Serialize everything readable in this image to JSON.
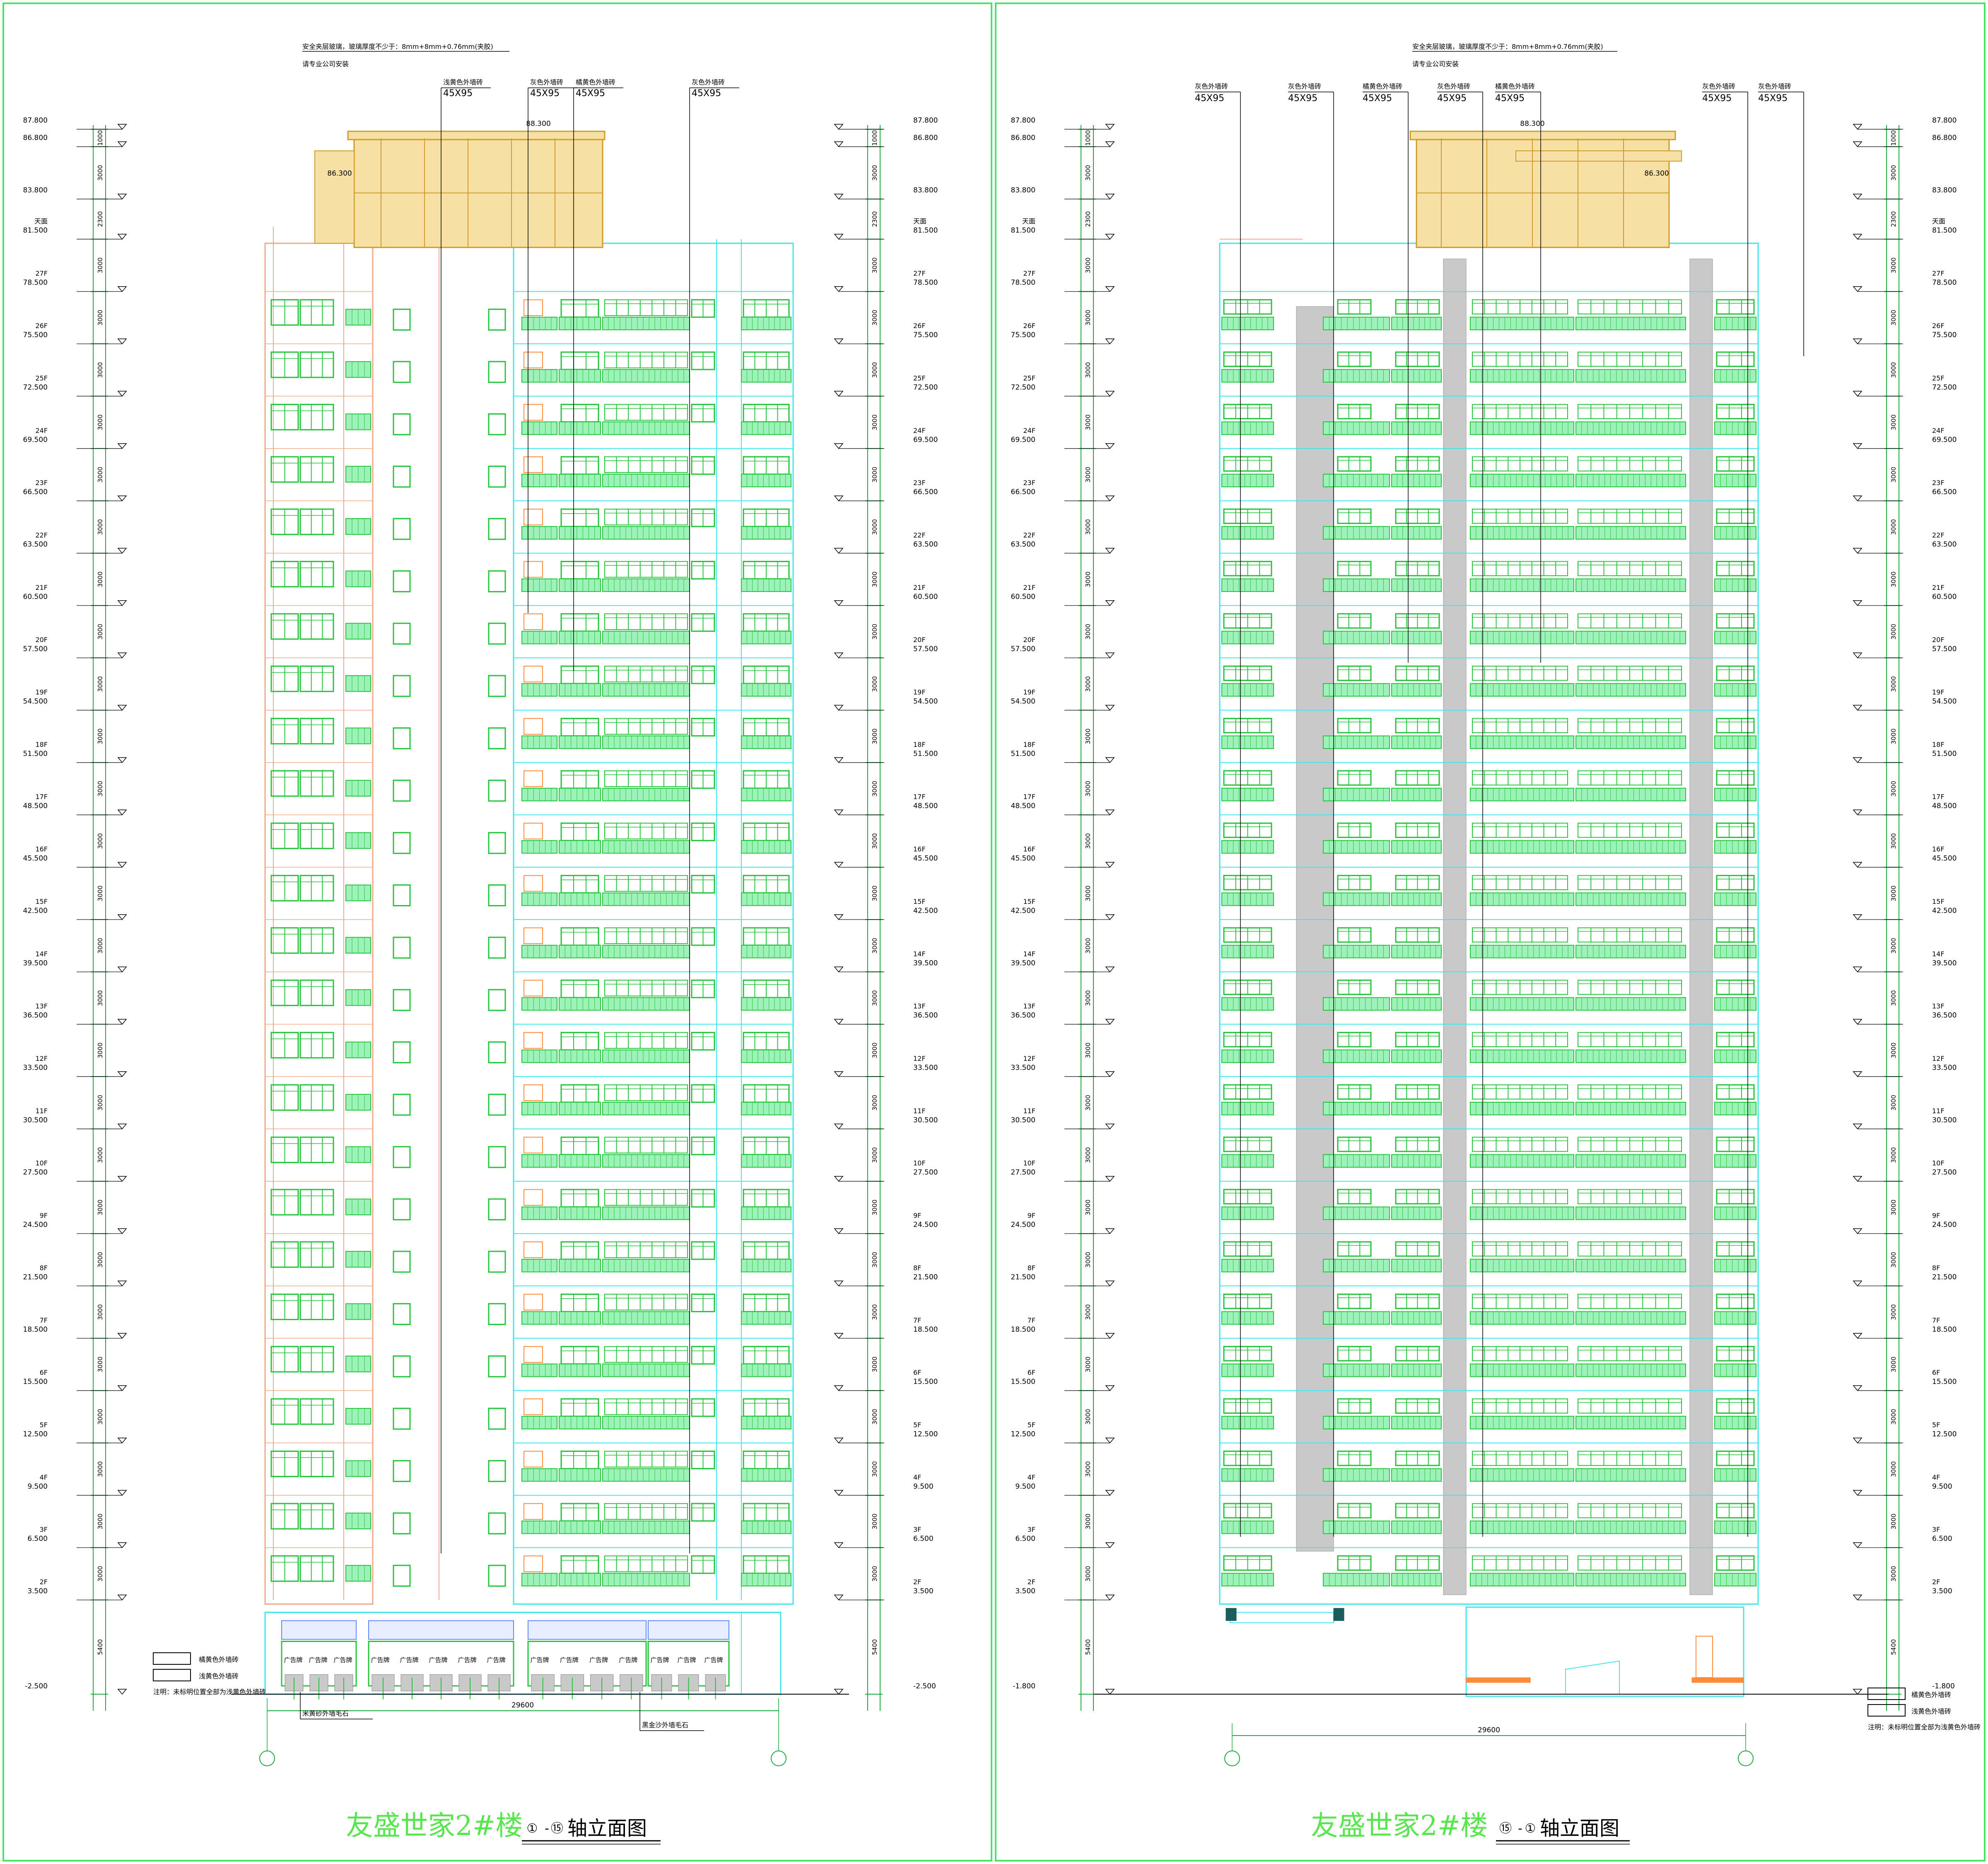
{
  "drawings": [
    {
      "id": "front",
      "title_name": "友盛世家2#楼",
      "axis_from": "①",
      "axis_to": "⑮",
      "title_suffix": "轴立面图",
      "glass_note_line1": "安全夹层玻璃，玻璃厚度不少于：8mm+8mm+0.76mm(夹胶)",
      "glass_note_line2": "请专业公司安装",
      "callouts": [
        {
          "label": "浅黄色外墙砖",
          "size": "45X95"
        },
        {
          "label": "灰色外墙砖",
          "size": "45X95"
        },
        {
          "label": "橘黄色外墙砖",
          "size": "45X95"
        },
        {
          "label": "灰色外墙砖",
          "size": "45X95"
        }
      ],
      "roof_levels": [
        "88.300",
        "86.300"
      ],
      "sign_label": "广告牌",
      "bottom_labels": [
        "米黄砂外墙毛石",
        "黑金沙外墙毛石"
      ],
      "total_width": "29600",
      "legend": [
        {
          "label": "橘黄色外墙砖"
        },
        {
          "label": "浅黄色外墙砖"
        }
      ],
      "legend_note": "注明：未标明位置全部为浅黄色外墙砖",
      "ground_level": "-2.500"
    },
    {
      "id": "back",
      "title_name": "友盛世家2#楼",
      "axis_from": "⑮",
      "axis_to": "①",
      "title_suffix": "轴立面图",
      "glass_note_line1": "安全夹层玻璃，玻璃厚度不少于：8mm+8mm+0.76mm(夹胶)",
      "glass_note_line2": "请专业公司安装",
      "callouts": [
        {
          "label": "灰色外墙砖",
          "size": "45X95"
        },
        {
          "label": "灰色外墙砖",
          "size": "45X95"
        },
        {
          "label": "橘黄色外墙砖",
          "size": "45X95"
        },
        {
          "label": "灰色外墙砖",
          "size": "45X95"
        },
        {
          "label": "橘黄色外墙砖",
          "size": "45X95"
        },
        {
          "label": "灰色外墙砖",
          "size": "45X95"
        },
        {
          "label": "灰色外墙砖",
          "size": "45X95"
        }
      ],
      "roof_levels": [
        "88.300",
        "86.300"
      ],
      "total_width": "29600",
      "legend": [
        {
          "label": "橘黄色外墙砖"
        },
        {
          "label": "浅黄色外墙砖"
        }
      ],
      "legend_note": "注明：未标明位置全部为浅黄色外墙砖",
      "ground_level": "-1.800"
    }
  ],
  "elevation_levels": [
    {
      "floor": "",
      "value": "87.800",
      "dim": "1000"
    },
    {
      "floor": "",
      "value": "86.800",
      "dim": "3000"
    },
    {
      "floor": "",
      "value": "83.800",
      "dim": "2300"
    },
    {
      "floor": "天面",
      "value": "81.500",
      "dim": "3000"
    },
    {
      "floor": "27F",
      "value": "78.500",
      "dim": "3000"
    },
    {
      "floor": "26F",
      "value": "75.500",
      "dim": "3000"
    },
    {
      "floor": "25F",
      "value": "72.500",
      "dim": "3000"
    },
    {
      "floor": "24F",
      "value": "69.500",
      "dim": "3000"
    },
    {
      "floor": "23F",
      "value": "66.500",
      "dim": "3000"
    },
    {
      "floor": "22F",
      "value": "63.500",
      "dim": "3000"
    },
    {
      "floor": "21F",
      "value": "60.500",
      "dim": "3000"
    },
    {
      "floor": "20F",
      "value": "57.500",
      "dim": "3000"
    },
    {
      "floor": "19F",
      "value": "54.500",
      "dim": "3000"
    },
    {
      "floor": "18F",
      "value": "51.500",
      "dim": "3000"
    },
    {
      "floor": "17F",
      "value": "48.500",
      "dim": "3000"
    },
    {
      "floor": "16F",
      "value": "45.500",
      "dim": "3000"
    },
    {
      "floor": "15F",
      "value": "42.500",
      "dim": "3000"
    },
    {
      "floor": "14F",
      "value": "39.500",
      "dim": "3000"
    },
    {
      "floor": "13F",
      "value": "36.500",
      "dim": "3000"
    },
    {
      "floor": "12F",
      "value": "33.500",
      "dim": "3000"
    },
    {
      "floor": "11F",
      "value": "30.500",
      "dim": "3000"
    },
    {
      "floor": "10F",
      "value": "27.500",
      "dim": "3000"
    },
    {
      "floor": "9F",
      "value": "24.500",
      "dim": "3000"
    },
    {
      "floor": "8F",
      "value": "21.500",
      "dim": "3000"
    },
    {
      "floor": "7F",
      "value": "18.500",
      "dim": "3000"
    },
    {
      "floor": "6F",
      "value": "15.500",
      "dim": "3000"
    },
    {
      "floor": "5F",
      "value": "12.500",
      "dim": "3000"
    },
    {
      "floor": "4F",
      "value": "9.500",
      "dim": "3000"
    },
    {
      "floor": "3F",
      "value": "6.500",
      "dim": "3000"
    },
    {
      "floor": "2F",
      "value": "3.500",
      "dim": "5400"
    }
  ],
  "colors": {
    "paper": "#ffffff",
    "frame": "#47e36a",
    "dimension": "#1aa83c",
    "tower_left": "#f0a987",
    "tower_right": "#3fe6ec",
    "window_green": "#22c43a",
    "balcony_green": "#9cf2b8",
    "roof_fill": "#f7e0a3",
    "roof_line": "#d09a2a",
    "gray_strip": "#c9c9c9",
    "orange": "#ff8a3a",
    "blue_frieze": "#5a86ff",
    "leader": "#000000",
    "title": "#58e64f"
  }
}
